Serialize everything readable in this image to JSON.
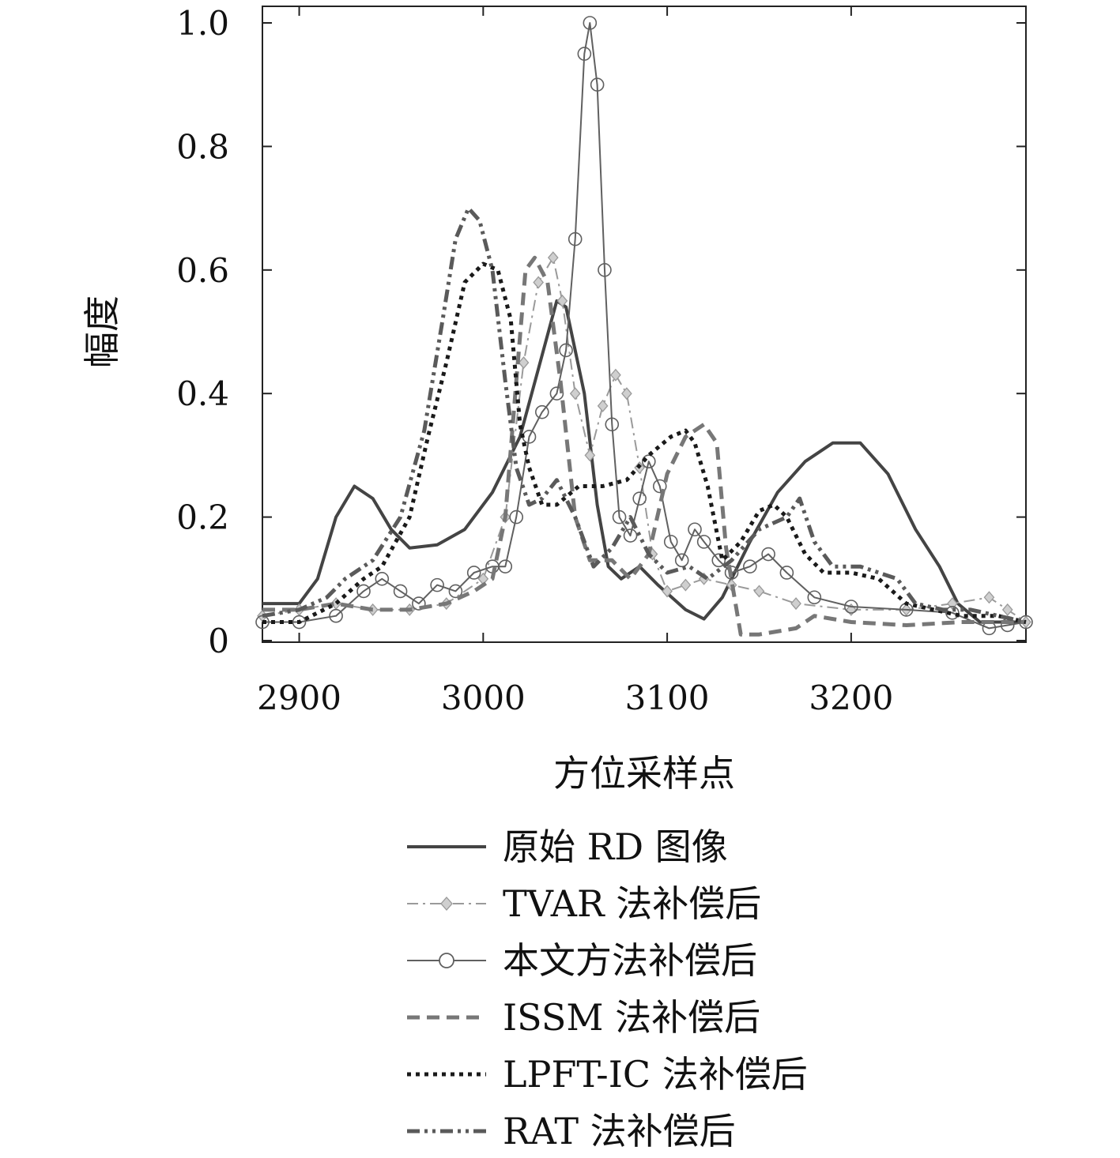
{
  "chart_data": {
    "type": "line",
    "title": "",
    "xlabel": "方位采样点",
    "ylabel": "幅度",
    "xlim": [
      2880,
      3295
    ],
    "ylim": [
      0,
      1.0
    ],
    "xticks": [
      2900,
      3000,
      3100,
      3200
    ],
    "yticks": [
      0,
      0.2,
      0.4,
      0.6,
      0.8,
      1.0
    ],
    "ytick_labels": [
      "0",
      "0.2",
      "0.4",
      "0.6",
      "0.8",
      "1.0"
    ],
    "grid": false,
    "legend_position": "below",
    "series": [
      {
        "name": "原始 RD 图像",
        "color": "#444444",
        "style": "solid-thick",
        "points": [
          [
            2880,
            0.06
          ],
          [
            2900,
            0.06
          ],
          [
            2910,
            0.1
          ],
          [
            2920,
            0.2
          ],
          [
            2930,
            0.25
          ],
          [
            2940,
            0.23
          ],
          [
            2950,
            0.18
          ],
          [
            2960,
            0.15
          ],
          [
            2975,
            0.155
          ],
          [
            2990,
            0.18
          ],
          [
            3005,
            0.24
          ],
          [
            3020,
            0.33
          ],
          [
            3030,
            0.44
          ],
          [
            3040,
            0.55
          ],
          [
            3045,
            0.54
          ],
          [
            3055,
            0.4
          ],
          [
            3062,
            0.22
          ],
          [
            3068,
            0.12
          ],
          [
            3075,
            0.1
          ],
          [
            3085,
            0.12
          ],
          [
            3095,
            0.09
          ],
          [
            3110,
            0.05
          ],
          [
            3120,
            0.035
          ],
          [
            3130,
            0.07
          ],
          [
            3145,
            0.16
          ],
          [
            3160,
            0.24
          ],
          [
            3175,
            0.29
          ],
          [
            3190,
            0.32
          ],
          [
            3205,
            0.32
          ],
          [
            3220,
            0.27
          ],
          [
            3235,
            0.18
          ],
          [
            3248,
            0.12
          ],
          [
            3258,
            0.06
          ],
          [
            3270,
            0.03
          ],
          [
            3295,
            0.03
          ]
        ]
      },
      {
        "name": "TVAR 法补偿后",
        "color": "#9a9a9a",
        "style": "dashdot-diamond",
        "points": [
          [
            2880,
            0.04
          ],
          [
            2900,
            0.05
          ],
          [
            2920,
            0.06
          ],
          [
            2940,
            0.05
          ],
          [
            2960,
            0.05
          ],
          [
            2980,
            0.06
          ],
          [
            3000,
            0.1
          ],
          [
            3012,
            0.2
          ],
          [
            3022,
            0.45
          ],
          [
            3030,
            0.58
          ],
          [
            3038,
            0.62
          ],
          [
            3043,
            0.55
          ],
          [
            3050,
            0.4
          ],
          [
            3058,
            0.3
          ],
          [
            3065,
            0.38
          ],
          [
            3072,
            0.43
          ],
          [
            3078,
            0.4
          ],
          [
            3085,
            0.28
          ],
          [
            3092,
            0.14
          ],
          [
            3100,
            0.08
          ],
          [
            3110,
            0.09
          ],
          [
            3120,
            0.1
          ],
          [
            3135,
            0.09
          ],
          [
            3150,
            0.08
          ],
          [
            3170,
            0.06
          ],
          [
            3200,
            0.05
          ],
          [
            3230,
            0.05
          ],
          [
            3255,
            0.06
          ],
          [
            3275,
            0.07
          ],
          [
            3285,
            0.05
          ],
          [
            3295,
            0.03
          ]
        ]
      },
      {
        "name": "本文方法补偿后",
        "color": "#606060",
        "style": "solid-circle",
        "points": [
          [
            2880,
            0.03
          ],
          [
            2900,
            0.03
          ],
          [
            2920,
            0.04
          ],
          [
            2935,
            0.08
          ],
          [
            2945,
            0.1
          ],
          [
            2955,
            0.08
          ],
          [
            2965,
            0.06
          ],
          [
            2975,
            0.09
          ],
          [
            2985,
            0.08
          ],
          [
            2995,
            0.11
          ],
          [
            3005,
            0.12
          ],
          [
            3012,
            0.12
          ],
          [
            3018,
            0.2
          ],
          [
            3025,
            0.33
          ],
          [
            3032,
            0.37
          ],
          [
            3040,
            0.4
          ],
          [
            3045,
            0.47
          ],
          [
            3050,
            0.65
          ],
          [
            3055,
            0.95
          ],
          [
            3058,
            1.0
          ],
          [
            3062,
            0.9
          ],
          [
            3066,
            0.6
          ],
          [
            3070,
            0.35
          ],
          [
            3074,
            0.2
          ],
          [
            3080,
            0.17
          ],
          [
            3085,
            0.23
          ],
          [
            3090,
            0.29
          ],
          [
            3096,
            0.25
          ],
          [
            3102,
            0.16
          ],
          [
            3108,
            0.13
          ],
          [
            3115,
            0.18
          ],
          [
            3120,
            0.16
          ],
          [
            3128,
            0.13
          ],
          [
            3135,
            0.11
          ],
          [
            3145,
            0.12
          ],
          [
            3155,
            0.14
          ],
          [
            3165,
            0.11
          ],
          [
            3180,
            0.07
          ],
          [
            3200,
            0.055
          ],
          [
            3230,
            0.05
          ],
          [
            3255,
            0.045
          ],
          [
            3275,
            0.02
          ],
          [
            3285,
            0.025
          ],
          [
            3295,
            0.03
          ]
        ]
      },
      {
        "name": "ISSM 法补偿后",
        "color": "#777777",
        "style": "dashed-thick",
        "points": [
          [
            2880,
            0.05
          ],
          [
            2900,
            0.05
          ],
          [
            2920,
            0.06
          ],
          [
            2940,
            0.05
          ],
          [
            2960,
            0.05
          ],
          [
            2980,
            0.06
          ],
          [
            2995,
            0.08
          ],
          [
            3005,
            0.1
          ],
          [
            3012,
            0.2
          ],
          [
            3018,
            0.42
          ],
          [
            3023,
            0.6
          ],
          [
            3028,
            0.62
          ],
          [
            3035,
            0.58
          ],
          [
            3042,
            0.42
          ],
          [
            3050,
            0.2
          ],
          [
            3058,
            0.13
          ],
          [
            3070,
            0.13
          ],
          [
            3080,
            0.1
          ],
          [
            3090,
            0.14
          ],
          [
            3100,
            0.27
          ],
          [
            3110,
            0.33
          ],
          [
            3120,
            0.35
          ],
          [
            3127,
            0.32
          ],
          [
            3132,
            0.15
          ],
          [
            3140,
            0.01
          ],
          [
            3150,
            0.01
          ],
          [
            3170,
            0.02
          ],
          [
            3180,
            0.04
          ],
          [
            3200,
            0.03
          ],
          [
            3230,
            0.025
          ],
          [
            3260,
            0.03
          ],
          [
            3285,
            0.03
          ],
          [
            3295,
            0.03
          ]
        ]
      },
      {
        "name": "LPFT-IC 法补偿后",
        "color": "#1a1a1a",
        "style": "dotted-thick",
        "points": [
          [
            2880,
            0.03
          ],
          [
            2900,
            0.03
          ],
          [
            2920,
            0.06
          ],
          [
            2935,
            0.1
          ],
          [
            2945,
            0.12
          ],
          [
            2960,
            0.2
          ],
          [
            2970,
            0.33
          ],
          [
            2980,
            0.45
          ],
          [
            2990,
            0.58
          ],
          [
            3000,
            0.61
          ],
          [
            3008,
            0.6
          ],
          [
            3015,
            0.52
          ],
          [
            3020,
            0.35
          ],
          [
            3025,
            0.28
          ],
          [
            3032,
            0.22
          ],
          [
            3040,
            0.22
          ],
          [
            3052,
            0.25
          ],
          [
            3065,
            0.25
          ],
          [
            3078,
            0.26
          ],
          [
            3090,
            0.3
          ],
          [
            3102,
            0.33
          ],
          [
            3110,
            0.34
          ],
          [
            3115,
            0.32
          ],
          [
            3122,
            0.25
          ],
          [
            3130,
            0.13
          ],
          [
            3140,
            0.16
          ],
          [
            3150,
            0.21
          ],
          [
            3158,
            0.22
          ],
          [
            3165,
            0.2
          ],
          [
            3175,
            0.14
          ],
          [
            3185,
            0.11
          ],
          [
            3200,
            0.11
          ],
          [
            3215,
            0.1
          ],
          [
            3230,
            0.06
          ],
          [
            3245,
            0.05
          ],
          [
            3260,
            0.04
          ],
          [
            3280,
            0.04
          ],
          [
            3295,
            0.03
          ]
        ]
      },
      {
        "name": "RAT 法补偿后",
        "color": "#5a5a5a",
        "style": "dashdotdot-thick",
        "points": [
          [
            2880,
            0.04
          ],
          [
            2900,
            0.05
          ],
          [
            2915,
            0.07
          ],
          [
            2925,
            0.1
          ],
          [
            2940,
            0.13
          ],
          [
            2955,
            0.2
          ],
          [
            2968,
            0.34
          ],
          [
            2978,
            0.52
          ],
          [
            2985,
            0.65
          ],
          [
            2992,
            0.7
          ],
          [
            2998,
            0.68
          ],
          [
            3005,
            0.6
          ],
          [
            3012,
            0.42
          ],
          [
            3018,
            0.28
          ],
          [
            3025,
            0.22
          ],
          [
            3032,
            0.23
          ],
          [
            3040,
            0.26
          ],
          [
            3050,
            0.2
          ],
          [
            3060,
            0.12
          ],
          [
            3070,
            0.15
          ],
          [
            3080,
            0.2
          ],
          [
            3090,
            0.14
          ],
          [
            3100,
            0.11
          ],
          [
            3112,
            0.12
          ],
          [
            3122,
            0.1
          ],
          [
            3135,
            0.13
          ],
          [
            3150,
            0.18
          ],
          [
            3165,
            0.2
          ],
          [
            3172,
            0.23
          ],
          [
            3180,
            0.16
          ],
          [
            3190,
            0.12
          ],
          [
            3205,
            0.12
          ],
          [
            3215,
            0.11
          ],
          [
            3225,
            0.1
          ],
          [
            3235,
            0.06
          ],
          [
            3250,
            0.05
          ],
          [
            3265,
            0.05
          ],
          [
            3280,
            0.04
          ],
          [
            3295,
            0.03
          ]
        ]
      }
    ]
  }
}
